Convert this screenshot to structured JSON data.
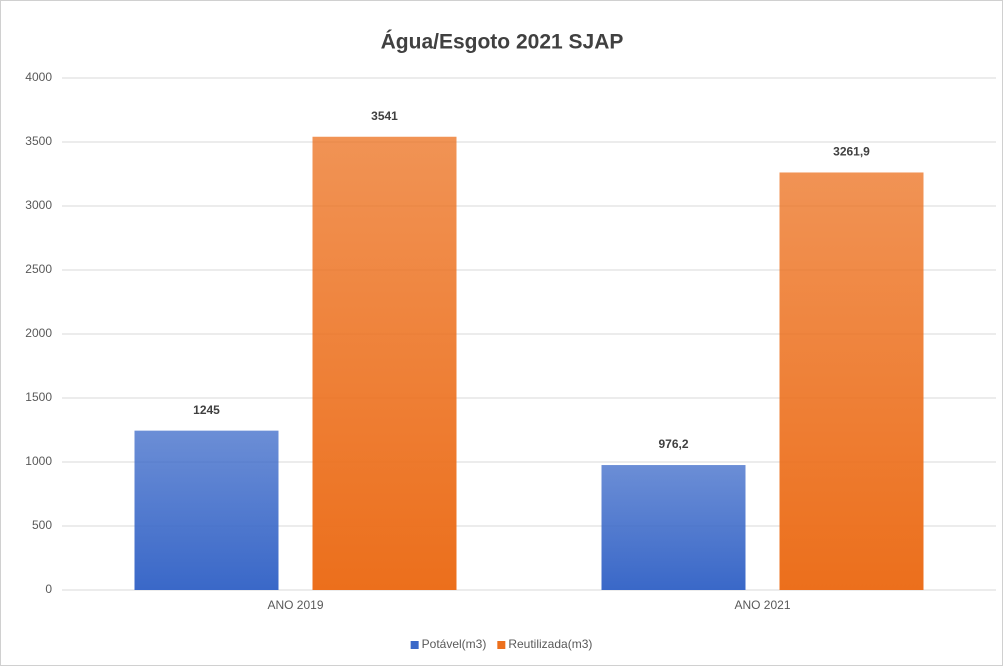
{
  "chart_data": {
    "type": "bar",
    "title": "Água/Esgoto  2021 SJAP",
    "categories": [
      "ANO 2019",
      "ANO 2021"
    ],
    "series": [
      {
        "name": "Potável(m3)",
        "color": "#3a68c8",
        "values": [
          1245,
          976.2
        ],
        "value_labels": [
          "1245",
          "976,2"
        ]
      },
      {
        "name": "Reutilizada(m3)",
        "color": "#ec6f1c",
        "values": [
          3541,
          3261.9
        ],
        "value_labels": [
          "3541",
          "3261,9"
        ]
      }
    ],
    "ylim": [
      0,
      4000
    ],
    "yticks": [
      0,
      500,
      1000,
      1500,
      2000,
      2500,
      3000,
      3500,
      4000
    ],
    "grid": true,
    "legend": "bottom"
  }
}
